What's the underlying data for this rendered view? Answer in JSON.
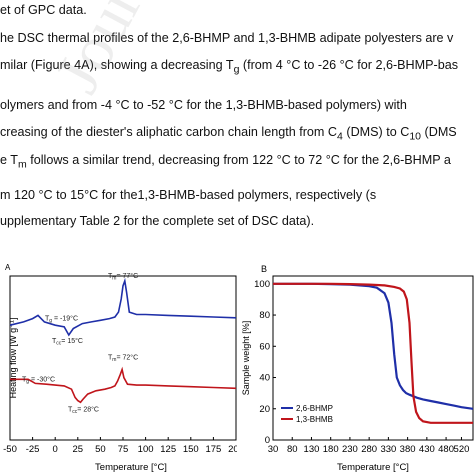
{
  "text_lines": [
    "et of GPC data.",
    "he DSC thermal profiles of the 2,6-BHMP and 1,3-BHMB adipate polyesters are v",
    "milar (Figure 4A), showing a decreasing T",
    "g",
    " (from 4 °C to -26 °C for 2,6-BHMP-bas",
    "olymers and from -4 °C to -52 °C for the 1,3-BHMB-based polymers) with",
    "creasing of the diester's aliphatic carbon chain length from C",
    "4",
    " (DMS) to C",
    "10",
    " (DMS",
    "e T",
    "m",
    " follows a similar trend, decreasing from 122 °C to 72 °C for the 2,6-BHMP a",
    "m   120 °C   to   15°C   for   the1,3-BHMB-based   polymers,   respectively   (s",
    "upplementary Table 2 for the complete set of DSC data)."
  ],
  "watermark": "Journal Pre-proofs",
  "chart_data": [
    {
      "panel_label": "A",
      "type": "line",
      "xlabel": "Temperature [°C]",
      "ylabel": "Heating flow [W g⁻¹]",
      "xlim": [
        -50,
        200
      ],
      "x_ticks": [
        "-50",
        "-25",
        "0",
        "25",
        "50",
        "75",
        "100",
        "125",
        "150",
        "175",
        "200"
      ],
      "series": [
        {
          "color": "#1f2fa8",
          "x": [
            -50,
            -35,
            -25,
            -19,
            -12,
            0,
            10,
            15,
            20,
            30,
            40,
            50,
            60,
            66,
            70,
            73,
            75,
            77,
            79,
            82,
            90,
            100,
            125,
            150,
            175,
            200
          ],
          "y": [
            0.7,
            0.72,
            0.74,
            0.76,
            0.72,
            0.7,
            0.69,
            0.64,
            0.68,
            0.71,
            0.72,
            0.73,
            0.74,
            0.75,
            0.78,
            0.86,
            0.94,
            0.97,
            0.9,
            0.78,
            0.765,
            0.765,
            0.76,
            0.755,
            0.75,
            0.745
          ]
        },
        {
          "color": "#c0151b",
          "x": [
            -50,
            -40,
            -30,
            -22,
            -10,
            0,
            10,
            18,
            22,
            25,
            28,
            31,
            36,
            45,
            55,
            62,
            66,
            69,
            72,
            74,
            76,
            80,
            90,
            100,
            125,
            150,
            175,
            200
          ],
          "y": [
            0.37,
            0.37,
            0.37,
            0.345,
            0.34,
            0.335,
            0.33,
            0.31,
            0.26,
            0.24,
            0.23,
            0.25,
            0.28,
            0.3,
            0.31,
            0.32,
            0.33,
            0.36,
            0.4,
            0.43,
            0.38,
            0.34,
            0.335,
            0.335,
            0.33,
            0.325,
            0.32,
            0.315
          ]
        }
      ],
      "annotations": [
        {
          "base": "T",
          "sub": "g",
          "text": " = -19°C",
          "x": -19,
          "y": 0.76
        },
        {
          "base": "T",
          "sub": "cc",
          "text": "= 15°C",
          "x": 15,
          "y": 0.64
        },
        {
          "base": "T",
          "sub": "m",
          "text": "= 77°C",
          "x": 77,
          "y": 0.97
        },
        {
          "base": "T",
          "sub": "g",
          "text": " = -30°C",
          "x": -30,
          "y": 0.37
        },
        {
          "base": "T",
          "sub": "cc",
          "text": "= 28°C",
          "x": 28,
          "y": 0.23
        },
        {
          "base": "T",
          "sub": "m",
          "text": "= 72°C",
          "x": 72,
          "y": 0.43
        }
      ]
    },
    {
      "panel_label": "B",
      "type": "line",
      "xlabel": "Temperature [°C]",
      "ylabel": "Sample weight [%]",
      "xlim": [
        30,
        550
      ],
      "ylim": [
        0,
        105
      ],
      "x_ticks": [
        "30",
        "80",
        "130",
        "180",
        "230",
        "280",
        "330",
        "380",
        "430",
        "480",
        "520"
      ],
      "y_ticks": [
        "0",
        "20",
        "40",
        "60",
        "80",
        "100"
      ],
      "legend_position": "bottom-left",
      "series": [
        {
          "name": "2,6-BHMP",
          "color": "#1f2fa8",
          "x": [
            30,
            80,
            130,
            180,
            230,
            280,
            300,
            320,
            330,
            338,
            345,
            352,
            360,
            368,
            376,
            385,
            395,
            405,
            420,
            440,
            460,
            480,
            500,
            520,
            550
          ],
          "y": [
            100,
            100,
            100,
            99.8,
            99.5,
            98.5,
            97.5,
            94,
            88,
            75,
            55,
            40,
            35,
            32,
            30,
            29,
            28,
            27,
            26,
            25,
            24,
            23,
            22,
            21,
            20
          ]
        },
        {
          "name": "1,3-BHMB",
          "color": "#c0151b",
          "x": [
            30,
            80,
            130,
            180,
            230,
            280,
            320,
            345,
            360,
            370,
            378,
            385,
            390,
            395,
            402,
            410,
            420,
            440,
            460,
            480,
            500,
            520,
            550
          ],
          "y": [
            100,
            100,
            100,
            100,
            99.8,
            99.5,
            99,
            98,
            97,
            95,
            90,
            75,
            50,
            28,
            18,
            14,
            12,
            11,
            11,
            11,
            11,
            11,
            11
          ]
        }
      ]
    }
  ]
}
